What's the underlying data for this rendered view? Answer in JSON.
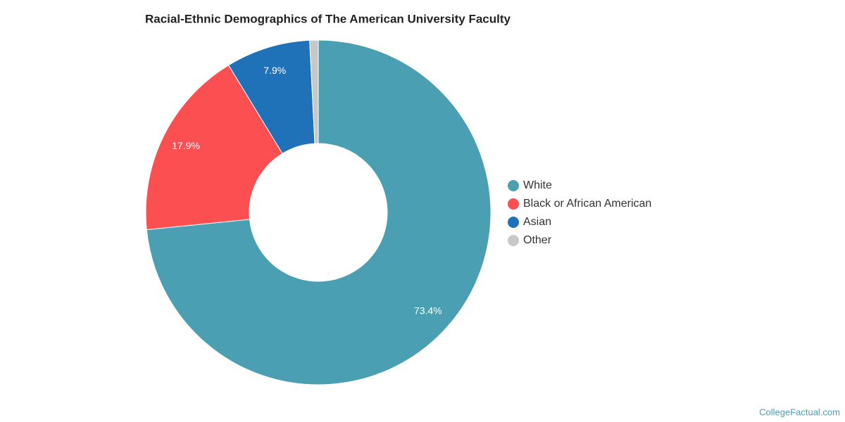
{
  "chart_data": {
    "type": "donut",
    "title": "Racial-Ethnic Demographics of The American University Faculty",
    "categories": [
      "White",
      "Black or African American",
      "Asian",
      "Other"
    ],
    "values": [
      73.4,
      17.9,
      7.9,
      0.8
    ],
    "value_labels": [
      "73.4%",
      "17.9%",
      "7.9%",
      null
    ],
    "colors": [
      "#4aa0b2",
      "#fc4f52",
      "#1f72b8",
      "#c8c8c8"
    ],
    "legend": "right",
    "source": "CollegeFactual.com"
  }
}
